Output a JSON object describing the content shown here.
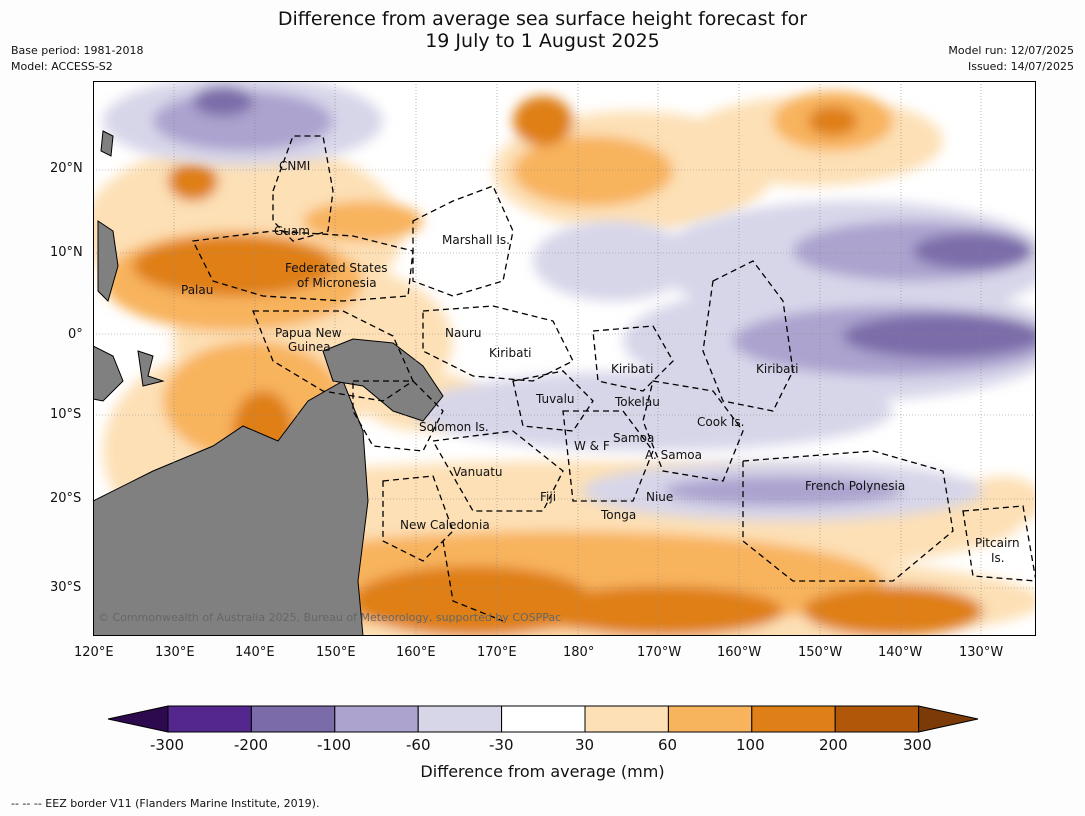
{
  "header": {
    "title_line1": "Difference from average sea surface height forecast for",
    "title_line2": "19 July to 1 August 2025",
    "base_period": "Base period: 1981-2018",
    "model": "Model: ACCESS-S2",
    "model_run": "Model run: 12/07/2025",
    "issued": "Issued: 14/07/2025"
  },
  "map": {
    "lat_labels": [
      "20°N",
      "10°N",
      "0°",
      "10°S",
      "20°S",
      "30°S"
    ],
    "lon_labels": [
      "120°E",
      "130°E",
      "140°E",
      "150°E",
      "160°E",
      "170°E",
      "180°",
      "170°W",
      "160°W",
      "150°W",
      "140°W",
      "130°W"
    ],
    "regions": [
      "CNMI",
      "Guam",
      "Marshall Is.",
      "Federated States",
      "of Micronesia",
      "Palau",
      "Papua New",
      "Guinea",
      "Nauru",
      "Kiribati",
      "Kiribati",
      "Kiribati",
      "Tuvalu",
      "Tokelau",
      "Solomon Is.",
      "Cook Is.",
      "W & F",
      "Samoa",
      "A. Samoa",
      "Vanuatu",
      "Fiji",
      "Niue",
      "French Polynesia",
      "Tonga",
      "New Caledonia",
      "Pitcairn",
      "Is."
    ],
    "copyright": "© Commonwealth of Australia 2025, Bureau of Meteorology, supported by COSPPac",
    "land_color": "#808080"
  },
  "colorbar": {
    "ticks": [
      "-300",
      "-200",
      "-100",
      "-60",
      "-30",
      "30",
      "60",
      "100",
      "200",
      "300"
    ],
    "colors": [
      "#2d0a4e",
      "#54278f",
      "#7b6ca9",
      "#aca3cf",
      "#d7d6e9",
      "#ffffff",
      "#fde0b6",
      "#f8b35d",
      "#df7f17",
      "#b1570a",
      "#7b3a08"
    ],
    "title": "Difference from average (mm)"
  },
  "footer": {
    "legend": "--  --  -- EEZ border V11 (Flanders Marine Institute, 2019)."
  }
}
